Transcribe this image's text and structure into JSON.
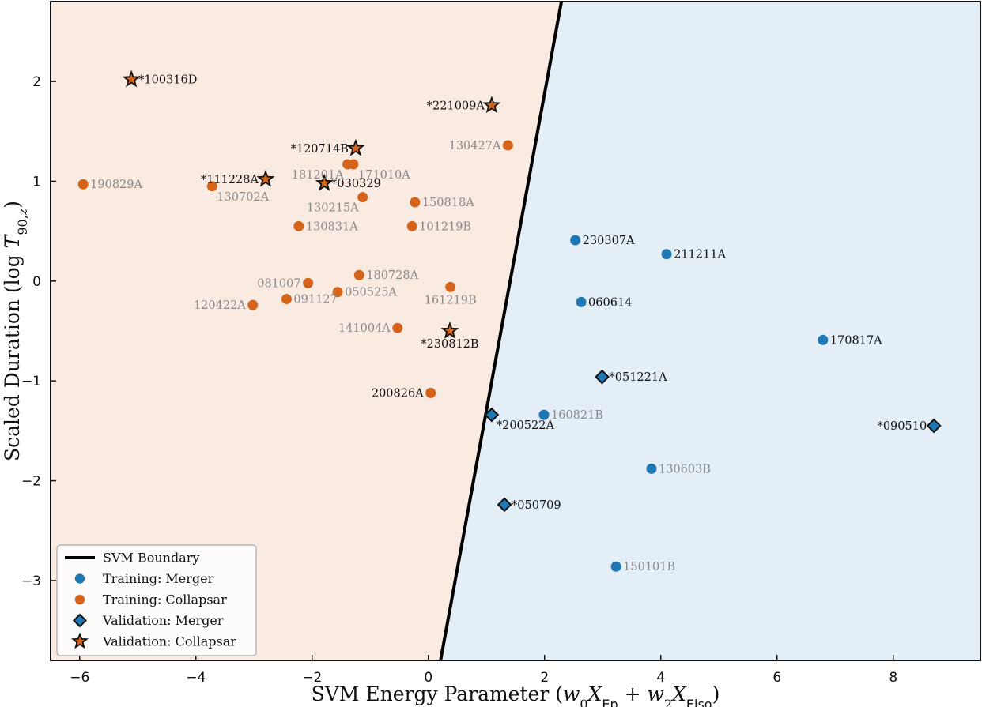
{
  "chart_data": {
    "type": "scatter",
    "xlabel": "SVM Energy Parameter (w0XEp + w2XEiso)",
    "ylabel": "Scaled Duration (log T90,z)",
    "xlim": [
      -6.5,
      9.5
    ],
    "ylim": [
      -3.8,
      2.8
    ],
    "xticks": [
      -6,
      -4,
      -2,
      0,
      2,
      4,
      6,
      8
    ],
    "yticks": [
      -3,
      -2,
      -1,
      0,
      1,
      2
    ],
    "grid": false,
    "legend_position": "bottom-left",
    "colors": {
      "merger": "#1f77b4",
      "collapsar": "#d5641a",
      "collapsar_region": "#f9ebe1",
      "merger_region": "#e3eef7",
      "boundary": "#000000",
      "label_dark": "#111111",
      "label_gray": "#888888"
    },
    "boundary": {
      "name": "SVM Boundary",
      "points": [
        [
          0.21,
          -3.8
        ],
        [
          2.29,
          2.8
        ]
      ]
    },
    "legend": [
      {
        "key": "boundary",
        "label": "SVM Boundary",
        "marker": "line"
      },
      {
        "key": "train_merger",
        "label": "Training: Merger",
        "marker": "circle",
        "color": "#1f77b4"
      },
      {
        "key": "train_collapsar",
        "label": "Training: Collapsar",
        "marker": "circle",
        "color": "#d5641a"
      },
      {
        "key": "val_merger",
        "label": "Validation: Merger",
        "marker": "diamond",
        "color": "#1f77b4"
      },
      {
        "key": "val_collapsar",
        "label": "Validation: Collapsar",
        "marker": "star",
        "color": "#d5641a"
      }
    ],
    "series": [
      {
        "name": "Training: Merger",
        "marker": "circle",
        "color": "#1f77b4",
        "points": [
          {
            "x": 2.53,
            "y": 0.41,
            "label": "230307A",
            "label_color": "#111111",
            "anchor": "right"
          },
          {
            "x": 4.1,
            "y": 0.27,
            "label": "211211A",
            "label_color": "#111111",
            "anchor": "right"
          },
          {
            "x": 2.63,
            "y": -0.21,
            "label": "060614",
            "label_color": "#111111",
            "anchor": "right"
          },
          {
            "x": 6.79,
            "y": -0.59,
            "label": "170817A",
            "label_color": "#111111",
            "anchor": "right"
          },
          {
            "x": 1.99,
            "y": -1.34,
            "label": "160821B",
            "label_color": "#888888",
            "anchor": "right"
          },
          {
            "x": 3.84,
            "y": -1.88,
            "label": "130603B",
            "label_color": "#888888",
            "anchor": "right"
          },
          {
            "x": 3.23,
            "y": -2.86,
            "label": "150101B",
            "label_color": "#888888",
            "anchor": "right"
          }
        ]
      },
      {
        "name": "Training: Collapsar",
        "marker": "circle",
        "color": "#d5641a",
        "points": [
          {
            "x": 1.37,
            "y": 1.36,
            "label": "130427A",
            "label_color": "#888888",
            "anchor": "left"
          },
          {
            "x": -5.94,
            "y": 0.97,
            "label": "190829A",
            "label_color": "#888888",
            "anchor": "right"
          },
          {
            "x": -3.72,
            "y": 0.95,
            "label": "130702A",
            "label_color": "#888888",
            "anchor": "below-right"
          },
          {
            "x": -1.39,
            "y": 1.17,
            "label": "181201A",
            "label_color": "#888888",
            "anchor": "below-left"
          },
          {
            "x": -1.29,
            "y": 1.17,
            "label": "171010A",
            "label_color": "#888888",
            "anchor": "below-right"
          },
          {
            "x": -1.13,
            "y": 0.84,
            "label": "130215A",
            "label_color": "#888888",
            "anchor": "below-left"
          },
          {
            "x": -0.23,
            "y": 0.79,
            "label": "150818A",
            "label_color": "#888888",
            "anchor": "right"
          },
          {
            "x": -2.23,
            "y": 0.55,
            "label": "130831A",
            "label_color": "#888888",
            "anchor": "right"
          },
          {
            "x": -0.28,
            "y": 0.55,
            "label": "101219B",
            "label_color": "#888888",
            "anchor": "right"
          },
          {
            "x": -1.19,
            "y": 0.06,
            "label": "180728A",
            "label_color": "#888888",
            "anchor": "right"
          },
          {
            "x": -2.07,
            "y": -0.02,
            "label": "081007",
            "label_color": "#888888",
            "anchor": "left"
          },
          {
            "x": 0.38,
            "y": -0.06,
            "label": "161219B",
            "label_color": "#888888",
            "anchor": "below"
          },
          {
            "x": -1.56,
            "y": -0.11,
            "label": "050525A",
            "label_color": "#888888",
            "anchor": "right"
          },
          {
            "x": -2.44,
            "y": -0.18,
            "label": "091127",
            "label_color": "#888888",
            "anchor": "right"
          },
          {
            "x": -3.02,
            "y": -0.24,
            "label": "120422A",
            "label_color": "#888888",
            "anchor": "left"
          },
          {
            "x": -0.53,
            "y": -0.47,
            "label": "141004A",
            "label_color": "#888888",
            "anchor": "left"
          },
          {
            "x": 0.04,
            "y": -1.12,
            "label": "200826A",
            "label_color": "#111111",
            "anchor": "left"
          }
        ]
      },
      {
        "name": "Validation: Merger",
        "marker": "diamond",
        "color": "#1f77b4",
        "points": [
          {
            "x": 2.99,
            "y": -0.96,
            "label": "*051221A",
            "label_color": "#111111",
            "anchor": "right"
          },
          {
            "x": 1.09,
            "y": -1.34,
            "label": "*200522A",
            "label_color": "#111111",
            "anchor": "below-right"
          },
          {
            "x": 8.7,
            "y": -1.45,
            "label": "*090510",
            "label_color": "#111111",
            "anchor": "left"
          },
          {
            "x": 1.31,
            "y": -2.24,
            "label": "*050709",
            "label_color": "#111111",
            "anchor": "right"
          }
        ]
      },
      {
        "name": "Validation: Collapsar",
        "marker": "star",
        "color": "#d5641a",
        "points": [
          {
            "x": -5.11,
            "y": 2.02,
            "label": "*100316D",
            "label_color": "#111111",
            "anchor": "right"
          },
          {
            "x": 1.09,
            "y": 1.76,
            "label": "*221009A",
            "label_color": "#111111",
            "anchor": "left"
          },
          {
            "x": -1.25,
            "y": 1.33,
            "label": "*120714B",
            "label_color": "#111111",
            "anchor": "left"
          },
          {
            "x": -2.8,
            "y": 1.02,
            "label": "*111228A",
            "label_color": "#111111",
            "anchor": "left"
          },
          {
            "x": -1.79,
            "y": 0.98,
            "label": "*030329",
            "label_color": "#111111",
            "anchor": "right"
          },
          {
            "x": 0.37,
            "y": -0.5,
            "label": "*230812B",
            "label_color": "#111111",
            "anchor": "below"
          }
        ]
      }
    ]
  }
}
